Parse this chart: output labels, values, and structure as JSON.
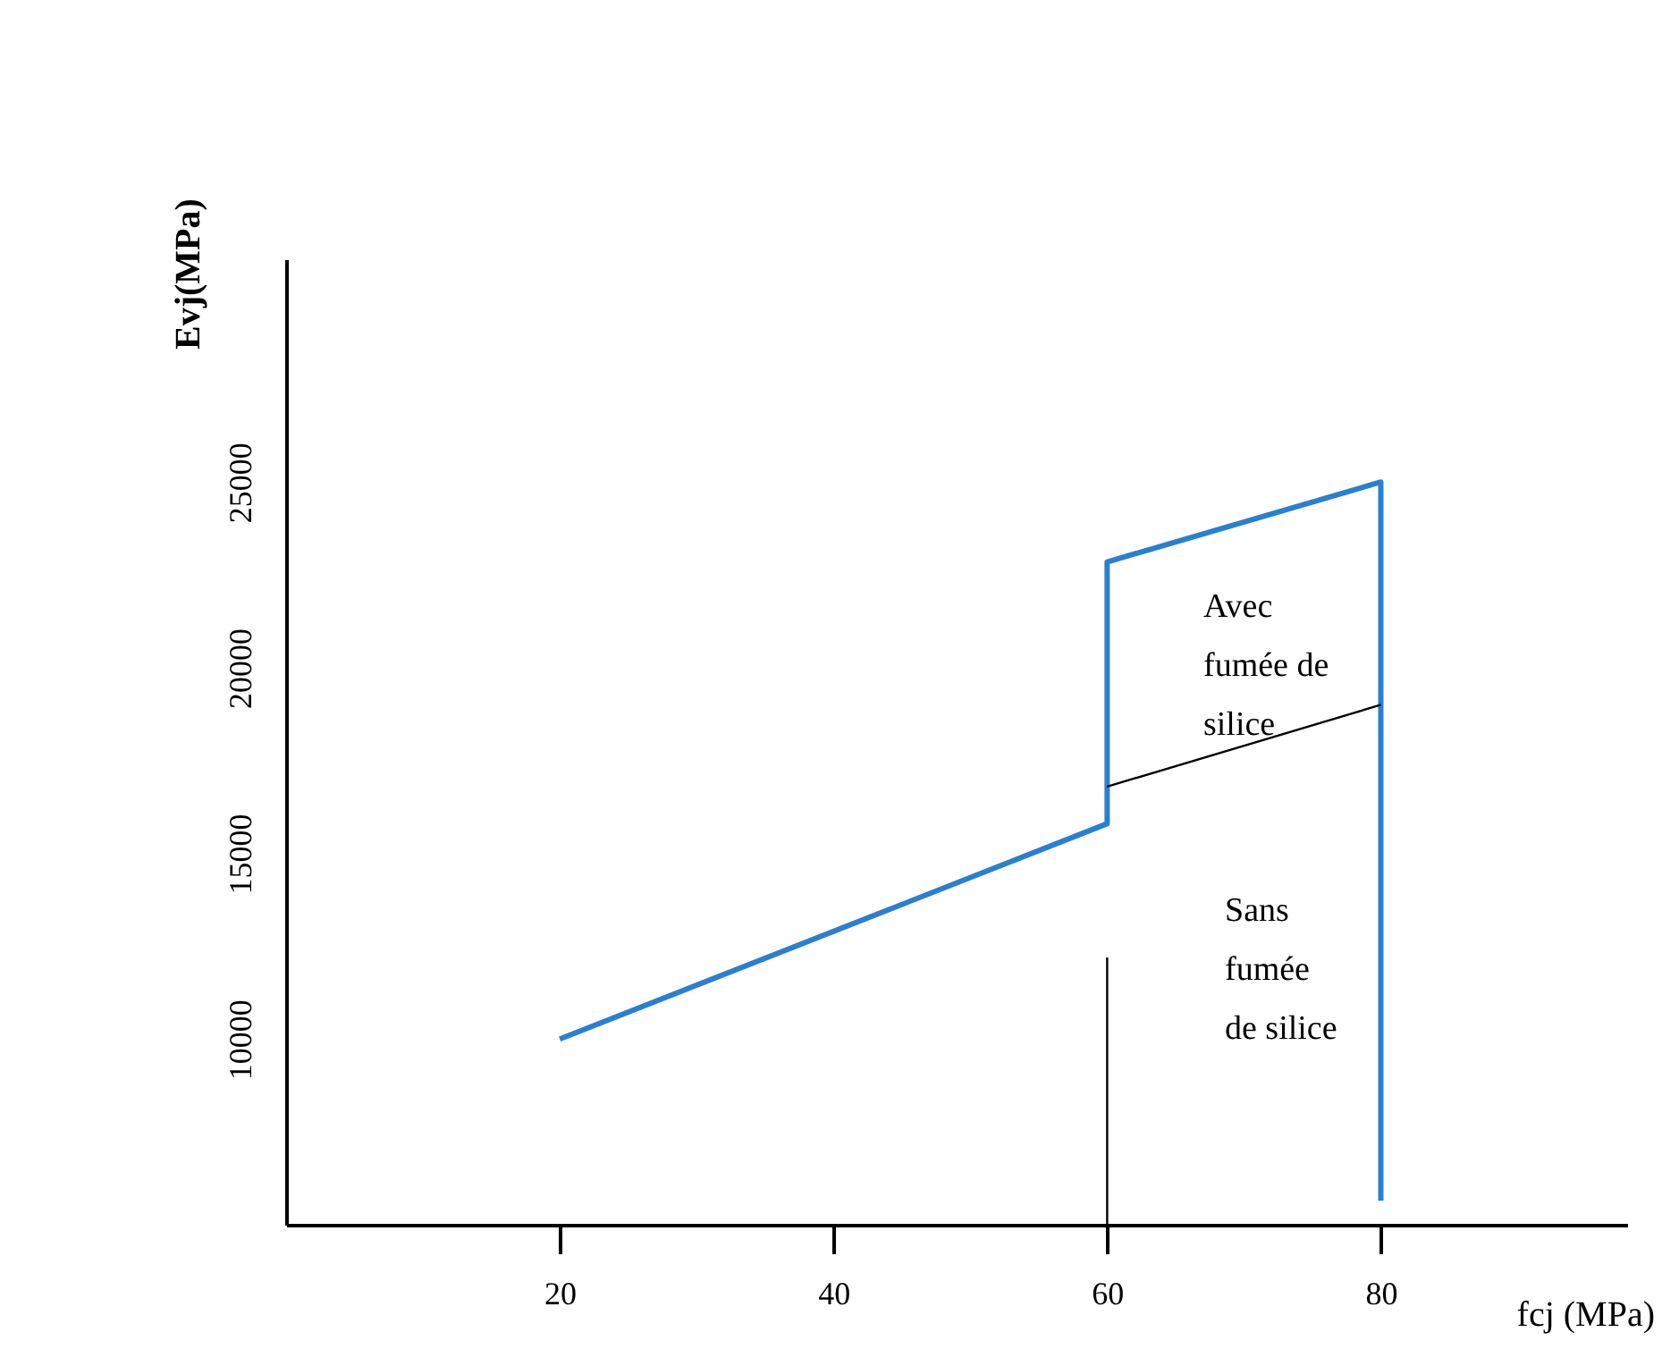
{
  "chart_data": {
    "type": "line",
    "xlabel": "fcj (MPa)",
    "ylabel": "Evj(MPa)",
    "xlim": [
      0,
      98
    ],
    "ylim": [
      5000,
      31000
    ],
    "xticks": [
      20,
      40,
      60,
      80
    ],
    "yticks": [
      10000,
      15000,
      20000,
      25000
    ],
    "grid": false,
    "marker": "none",
    "line_style": "solid",
    "series": [
      {
        "color": "#2a7fd0",
        "x": [
          20,
          60,
          60,
          80,
          80
        ],
        "values": [
          10000,
          15800,
          22850,
          25000,
          5650
        ]
      },
      {
        "color": "#000000",
        "x": [
          60,
          80
        ],
        "values": [
          16800,
          19000
        ]
      },
      {
        "color": "#000000",
        "x": [
          60,
          60
        ],
        "values": [
          5000,
          12200
        ]
      }
    ],
    "annotations": [
      "Avec\nfumée de\nsilice",
      "Sans\nfumée\nde silice"
    ]
  }
}
